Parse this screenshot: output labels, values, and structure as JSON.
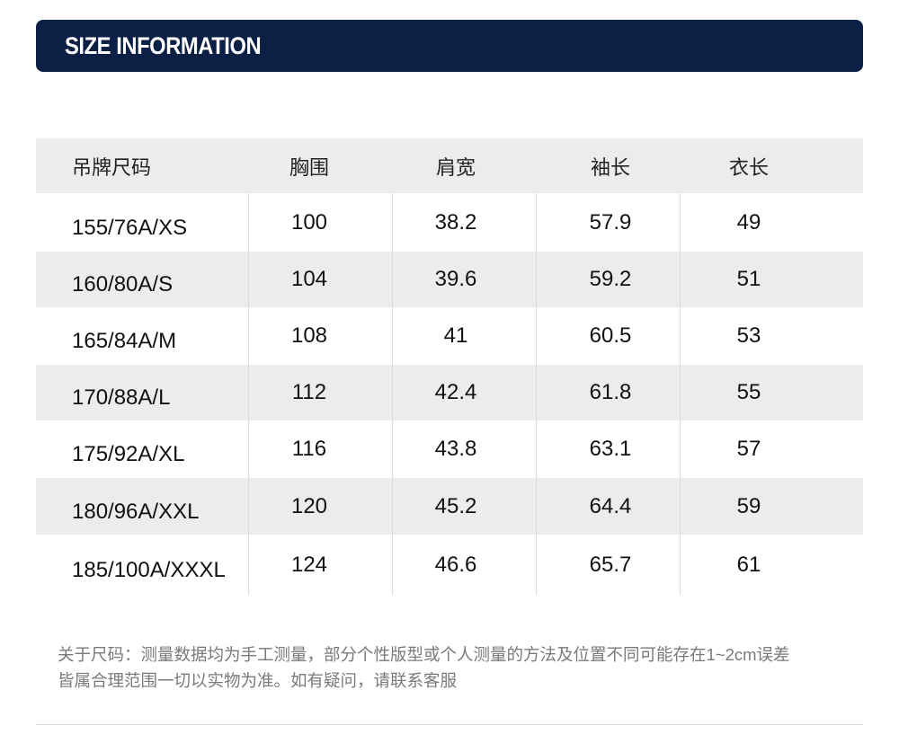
{
  "header": {
    "title": "SIZE INFORMATION"
  },
  "table": {
    "headers": [
      "吊牌尺码",
      "胸围",
      "肩宽",
      "袖长",
      "衣长"
    ],
    "rows": [
      [
        "155/76A/XS",
        "100",
        "38.2",
        "57.9",
        "49"
      ],
      [
        "160/80A/S",
        "104",
        "39.6",
        "59.2",
        "51"
      ],
      [
        "165/84A/M",
        "108",
        "41",
        "60.5",
        "53"
      ],
      [
        "170/88A/L",
        "112",
        "42.4",
        "61.8",
        "55"
      ],
      [
        "175/92A/XL",
        "116",
        "43.8",
        "63.1",
        "57"
      ],
      [
        "180/96A/XXL",
        "120",
        "45.2",
        "64.4",
        "59"
      ],
      [
        "185/100A/XXXL",
        "124",
        "46.6",
        "65.7",
        "61"
      ]
    ]
  },
  "note": [
    "关于尺码：测量数据均为手工测量，部分个性版型或个人测量的方法及位置不同可能存在1~2cm误差",
    "皆属合理范围一切以实物为准。如有疑问，请联系客服"
  ]
}
